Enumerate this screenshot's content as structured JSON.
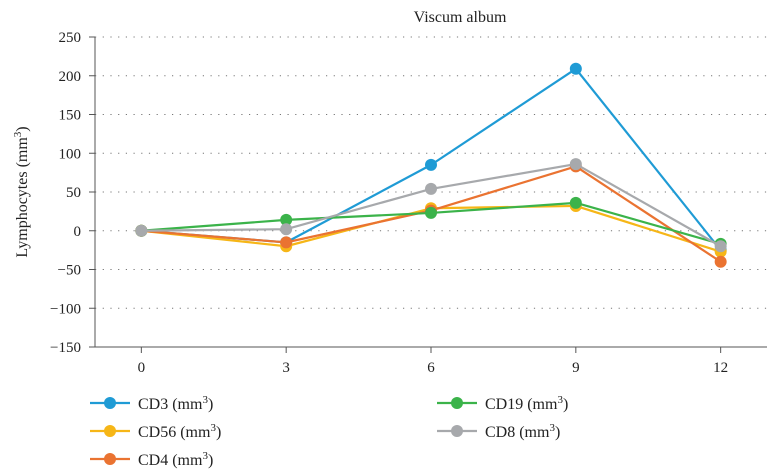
{
  "chart_data": {
    "type": "line",
    "title": "Viscum album",
    "xlabel": "",
    "ylabel": "Lymphocytes (mm",
    "ylabel_sup": "3",
    "ylabel_close": ")",
    "x": [
      0,
      3,
      6,
      9,
      12
    ],
    "x_tick_labels": [
      "0",
      "3",
      "6",
      "9",
      "12"
    ],
    "ylim": [
      -150,
      250
    ],
    "y_ticks": [
      -150,
      -100,
      -50,
      0,
      50,
      100,
      150,
      200,
      250
    ],
    "y_tick_labels": [
      "−150",
      "−100",
      "−50",
      "0",
      "50",
      "100",
      "150",
      "200",
      "250"
    ],
    "grid": true,
    "legend_position": "bottom",
    "series": [
      {
        "name": "CD3 (mm",
        "sup": "3",
        "close": ")",
        "color": "#1f9bd5",
        "values": [
          0,
          -15,
          85,
          209,
          -25
        ]
      },
      {
        "name": "CD56 (mm",
        "sup": "3",
        "close": ")",
        "color": "#f6b617",
        "values": [
          0,
          -20,
          29,
          32,
          -27
        ]
      },
      {
        "name": "CD4 (mm",
        "sup": "3",
        "close": ")",
        "color": "#ea7331",
        "values": [
          0,
          -15,
          26,
          83,
          -40
        ]
      },
      {
        "name": "CD19 (mm",
        "sup": "3",
        "close": ")",
        "color": "#3bb34a",
        "values": [
          0,
          14,
          23,
          36,
          -17
        ]
      },
      {
        "name": "CD8 (mm",
        "sup": "3",
        "close": ")",
        "color": "#a7a9ac",
        "values": [
          0,
          2,
          54,
          86,
          -20
        ]
      }
    ]
  }
}
